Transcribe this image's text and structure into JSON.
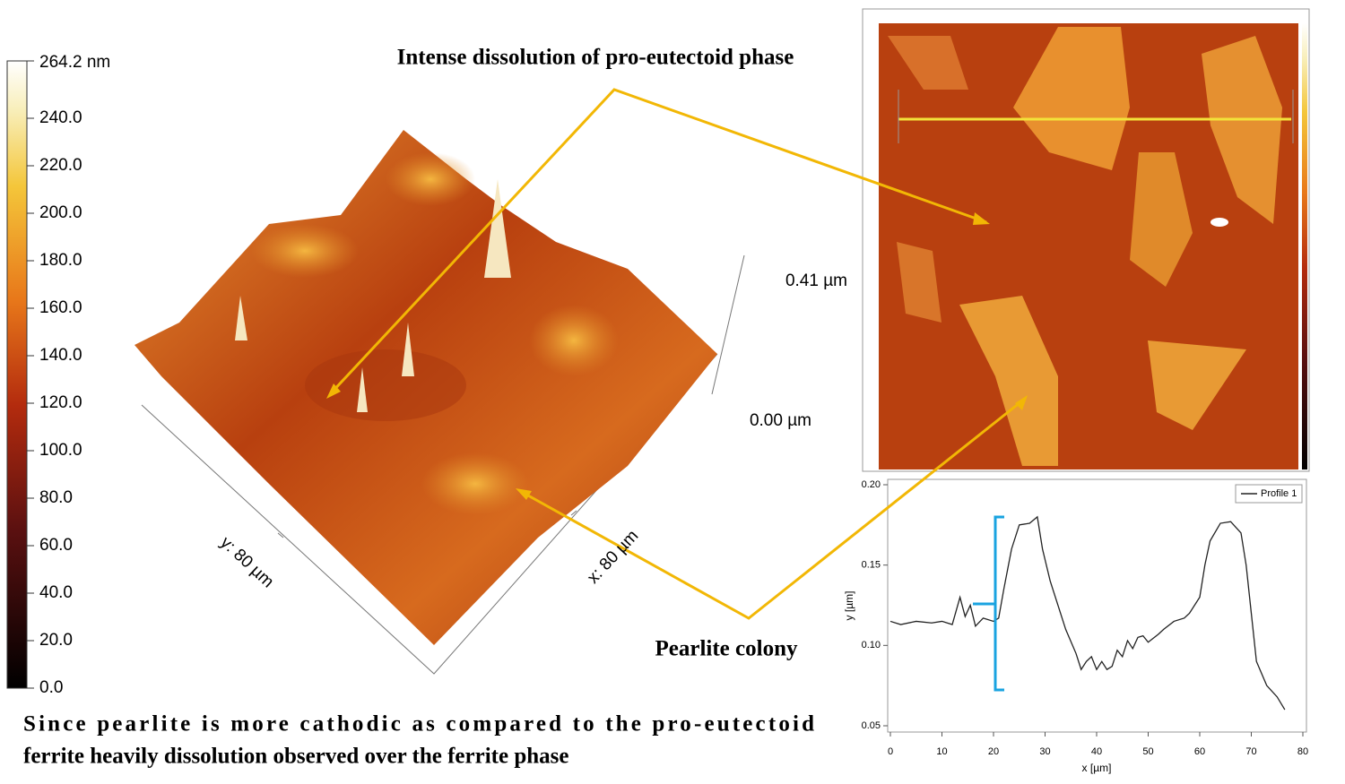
{
  "colorbar": {
    "max_label": "264.2 nm",
    "ticks": [
      "240.0",
      "220.0",
      "200.0",
      "180.0",
      "160.0",
      "140.0",
      "120.0",
      "100.0",
      "80.0",
      "60.0",
      "40.0",
      "20.0",
      "0.0"
    ]
  },
  "surface": {
    "z_top": "0.41 µm",
    "z_bottom": "0.00 µm",
    "y_axis": "y: 80 µm",
    "x_axis": "x: 80 µm"
  },
  "annotations": {
    "top": "Intense dissolution of pro-eutectoid phase",
    "pearlite": "Pearlite colony",
    "caption_line1": "Since pearlite is more cathodic as compared to the pro-eutectoid",
    "caption_line2": "ferrite heavily dissolution observed over the ferrite phase"
  },
  "chart_data": {
    "type": "line",
    "xlabel": "x [µm]",
    "ylabel": "y [µm]",
    "xlim": [
      0,
      80
    ],
    "ylim": [
      0.05,
      0.2
    ],
    "xticks": [
      0,
      10,
      20,
      30,
      40,
      50,
      60,
      70,
      80
    ],
    "yticks": [
      0.05,
      {
        "value": 0.1,
        "label": "0.10"
      },
      0.15,
      {
        "value": 0.2,
        "label": "0.20"
      }
    ],
    "legend": "upper right",
    "series": [
      {
        "name": "Profile 1",
        "color": "#222222",
        "x": [
          0,
          2,
          5,
          8,
          10,
          12,
          13.5,
          14.5,
          15.5,
          16.5,
          18,
          20,
          21,
          22,
          23.5,
          25,
          27,
          28.5,
          29.5,
          31,
          33,
          34,
          36,
          37,
          38,
          39,
          40,
          41,
          42,
          43,
          44,
          45,
          46,
          47,
          48,
          49,
          50,
          52,
          53,
          55,
          57,
          58,
          60,
          61,
          62,
          64,
          66,
          68,
          69,
          70,
          71,
          73,
          75,
          76.5
        ],
        "values": [
          0.115,
          0.113,
          0.115,
          0.114,
          0.115,
          0.113,
          0.13,
          0.118,
          0.125,
          0.112,
          0.117,
          0.115,
          0.117,
          0.135,
          0.16,
          0.175,
          0.176,
          0.18,
          0.16,
          0.14,
          0.12,
          0.11,
          0.095,
          0.085,
          0.09,
          0.093,
          0.085,
          0.09,
          0.085,
          0.087,
          0.097,
          0.093,
          0.103,
          0.098,
          0.105,
          0.106,
          0.102,
          0.107,
          0.11,
          0.115,
          0.117,
          0.12,
          0.13,
          0.15,
          0.165,
          0.176,
          0.177,
          0.17,
          0.15,
          0.12,
          0.09,
          0.075,
          0.068,
          0.06
        ]
      }
    ]
  }
}
